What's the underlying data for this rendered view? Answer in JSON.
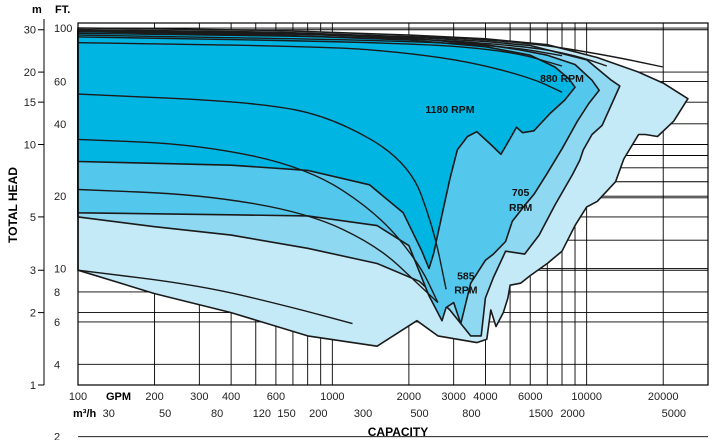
{
  "chart_data": {
    "type": "area",
    "title": "",
    "xlabel": "CAPACITY",
    "ylabel": "TOTAL HEAD",
    "x_scale": "log",
    "y_scale": "log",
    "x_unit_gpm": "GPM",
    "x_unit_m3h": "m³/h",
    "y_unit_m": "m",
    "y_unit_ft": "FT.",
    "x_range_gpm": [
      100,
      30000
    ],
    "y_range_m": [
      1,
      32
    ],
    "grid": true,
    "gpm_ticks": [
      "100",
      "200",
      "300",
      "400",
      "600",
      "1000",
      "2000",
      "3000",
      "4000",
      "6000",
      "10000",
      "20000"
    ],
    "m3h_ticks": [
      "30",
      "50",
      "80",
      "120",
      "150",
      "200",
      "300",
      "500",
      "800",
      "1500",
      "2000",
      "5000"
    ],
    "m_ticks": [
      "1",
      "2",
      "3",
      "5",
      "10",
      "15",
      "20",
      "30"
    ],
    "ft_ticks": [
      "2",
      "4",
      "6",
      "8",
      "10",
      "20",
      "40",
      "60",
      "100"
    ],
    "colors": {
      "1180_rpm": "#00b5e2",
      "880_rpm": "#54c8ec",
      "705_rpm": "#8fd8f2",
      "585_rpm": "#c4e9f7",
      "outline": "#1a1a1a"
    },
    "series": [
      {
        "name": "585 RPM",
        "color": "#c4e9f7",
        "outline": [
          [
            100,
            30.5
          ],
          [
            600,
            29.8
          ],
          [
            2000,
            28.5
          ],
          [
            4000,
            27.5
          ],
          [
            7000,
            26
          ],
          [
            11000,
            23
          ],
          [
            16000,
            20
          ],
          [
            20000,
            18
          ],
          [
            25000,
            15.5
          ],
          [
            22000,
            12.5
          ],
          [
            19000,
            10.8
          ],
          [
            17000,
            11
          ],
          [
            16000,
            11
          ],
          [
            14000,
            8.7
          ],
          [
            13000,
            7
          ],
          [
            11000,
            5.8
          ],
          [
            10000,
            5.5
          ],
          [
            9000,
            4.6
          ],
          [
            8000,
            3.6
          ],
          [
            7000,
            3.2
          ],
          [
            6000,
            2.85
          ],
          [
            5500,
            2.65
          ],
          [
            5000,
            2.6
          ],
          [
            4900,
            2.3
          ],
          [
            4700,
            2.0
          ],
          [
            4400,
            1.75
          ],
          [
            4200,
            2.05
          ],
          [
            4050,
            1.55
          ],
          [
            3700,
            1.5
          ],
          [
            2600,
            1.6
          ],
          [
            2150,
            1.85
          ],
          [
            1500,
            1.45
          ],
          [
            800,
            1.6
          ],
          [
            400,
            2.0
          ],
          [
            200,
            2.4
          ],
          [
            100,
            3.0
          ]
        ]
      },
      {
        "name": "705 RPM",
        "color": "#8fd8f2",
        "outline": [
          [
            100,
            30
          ],
          [
            600,
            29.3
          ],
          [
            2000,
            28
          ],
          [
            4000,
            26.8
          ],
          [
            6000,
            25.8
          ],
          [
            10000,
            22.5
          ],
          [
            12500,
            18.5
          ],
          [
            13500,
            17.5
          ],
          [
            11500,
            12
          ],
          [
            10500,
            11
          ],
          [
            9700,
            9.5
          ],
          [
            9400,
            8.6
          ],
          [
            8800,
            7.5
          ],
          [
            7500,
            5.6
          ],
          [
            6500,
            4.2
          ],
          [
            5700,
            3.5
          ],
          [
            4800,
            3.6
          ],
          [
            4300,
            2.8
          ],
          [
            4000,
            2.3
          ],
          [
            3850,
            1.6
          ],
          [
            3500,
            1.6
          ],
          [
            2900,
            2.05
          ],
          [
            2200,
            2.7
          ],
          [
            1500,
            3.2
          ],
          [
            800,
            3.7
          ],
          [
            400,
            4.2
          ],
          [
            200,
            4.55
          ],
          [
            100,
            5.0
          ]
        ]
      },
      {
        "name": "880 RPM",
        "color": "#54c8ec",
        "outline": [
          [
            100,
            29.8
          ],
          [
            600,
            29
          ],
          [
            2000,
            27.7
          ],
          [
            4000,
            26
          ],
          [
            5500,
            24.7
          ],
          [
            7000,
            23.5
          ],
          [
            9000,
            21.5
          ],
          [
            10500,
            18.5
          ],
          [
            11200,
            16.8
          ],
          [
            10200,
            14.8
          ],
          [
            9200,
            12.5
          ],
          [
            8000,
            9.6
          ],
          [
            7000,
            7.6
          ],
          [
            6200,
            6.2
          ],
          [
            5800,
            5.7
          ],
          [
            5100,
            4.8
          ],
          [
            4800,
            3.95
          ],
          [
            4300,
            3.5
          ],
          [
            4000,
            3.3
          ],
          [
            3500,
            2.65
          ],
          [
            3200,
            1.8
          ],
          [
            3000,
            2.2
          ],
          [
            2800,
            2.1
          ],
          [
            2700,
            1.85
          ],
          [
            2400,
            2.35
          ],
          [
            2000,
            3.8
          ],
          [
            1500,
            4.6
          ],
          [
            800,
            5.05
          ],
          [
            400,
            5.1
          ],
          [
            200,
            5.15
          ],
          [
            100,
            5.2
          ]
        ]
      },
      {
        "name": "1180 RPM",
        "color": "#00b5e2",
        "outline": [
          [
            100,
            29.5
          ],
          [
            600,
            28.5
          ],
          [
            2000,
            27.2
          ],
          [
            4000,
            25.5
          ],
          [
            6000,
            23.5
          ],
          [
            7500,
            21
          ],
          [
            8500,
            18.8
          ],
          [
            9000,
            17.3
          ],
          [
            8200,
            15.3
          ],
          [
            7200,
            13.5
          ],
          [
            6200,
            11.4
          ],
          [
            5600,
            11.2
          ],
          [
            5300,
            11.8
          ],
          [
            4900,
            10.2
          ],
          [
            4600,
            9.1
          ],
          [
            4200,
            10
          ],
          [
            3700,
            11.3
          ],
          [
            3400,
            10.8
          ],
          [
            3100,
            9.5
          ],
          [
            2900,
            7.2
          ],
          [
            2700,
            5.1
          ],
          [
            2500,
            3.5
          ],
          [
            2400,
            3.05
          ],
          [
            2250,
            3.6
          ],
          [
            1900,
            5.2
          ],
          [
            1400,
            6.8
          ],
          [
            800,
            7.8
          ],
          [
            400,
            8.2
          ],
          [
            200,
            8.35
          ],
          [
            100,
            8.5
          ]
        ]
      }
    ],
    "curves": [
      [
        [
          100,
          29.5
        ],
        [
          2000,
          28.4
        ],
        [
          6000,
          26.5
        ],
        [
          12000,
          23.5
        ],
        [
          20000,
          21
        ]
      ],
      [
        [
          100,
          29.0
        ],
        [
          2000,
          27.8
        ],
        [
          6000,
          25.5
        ],
        [
          9000,
          23.5
        ],
        [
          12000,
          21.2
        ]
      ],
      [
        [
          100,
          28.5
        ],
        [
          2000,
          27.0
        ],
        [
          5000,
          25.5
        ],
        [
          8000,
          23.4
        ]
      ],
      [
        [
          100,
          28.0
        ],
        [
          2000,
          26.5
        ],
        [
          5000,
          24.5
        ],
        [
          8000,
          21.2
        ]
      ],
      [
        [
          100,
          26.5
        ],
        [
          1000,
          25.5
        ],
        [
          2000,
          24
        ],
        [
          3500,
          22
        ],
        [
          6000,
          19
        ],
        [
          8000,
          16.5
        ]
      ],
      [
        [
          100,
          16.2
        ],
        [
          500,
          15
        ],
        [
          1000,
          13
        ],
        [
          2000,
          8.5
        ],
        [
          2500,
          4.5
        ],
        [
          2800,
          2.5
        ]
      ],
      [
        [
          100,
          10.5
        ],
        [
          300,
          10
        ],
        [
          800,
          8
        ],
        [
          1500,
          5.2
        ],
        [
          2200,
          3.2
        ],
        [
          2600,
          2.2
        ]
      ],
      [
        [
          100,
          6.5
        ],
        [
          300,
          6.2
        ],
        [
          800,
          5.2
        ],
        [
          1500,
          3.8
        ],
        [
          2200,
          2.6
        ],
        [
          2600,
          2.2
        ]
      ],
      [
        [
          100,
          3.0
        ],
        [
          300,
          2.6
        ],
        [
          700,
          2.1
        ],
        [
          1200,
          1.8
        ]
      ]
    ],
    "annotations": [
      {
        "text": "1180 RPM",
        "x": 2900,
        "y": 13.5
      },
      {
        "text": "880 RPM",
        "x": 8000,
        "y": 18.2
      },
      {
        "text": "705",
        "x": 5500,
        "y": 6.1
      },
      {
        "text": "RPM",
        "x": 5500,
        "y": 5.3
      },
      {
        "text": "585",
        "x": 3350,
        "y": 2.75
      },
      {
        "text": "RPM",
        "x": 3350,
        "y": 2.4
      }
    ]
  }
}
